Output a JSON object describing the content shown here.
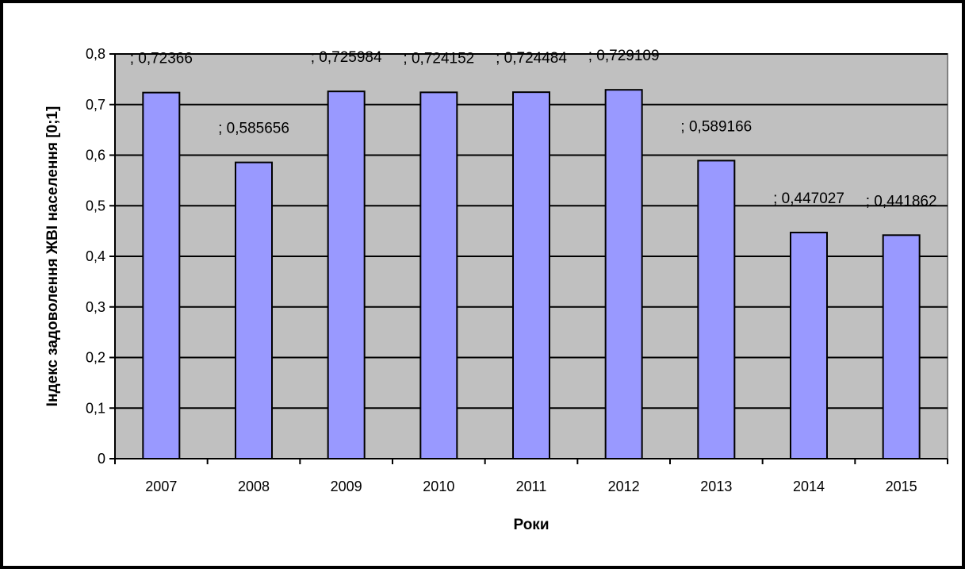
{
  "chart_data": {
    "type": "bar",
    "title": "",
    "xlabel": "Роки",
    "ylabel": "Індекс задоволення ЖВІ населення [0;1]",
    "categories": [
      "2007",
      "2008",
      "2009",
      "2010",
      "2011",
      "2012",
      "2013",
      "2014",
      "2015"
    ],
    "values": [
      0.72366,
      0.585656,
      0.725984,
      0.724152,
      0.724484,
      0.729109,
      0.589166,
      0.447027,
      0.441862
    ],
    "data_labels": [
      "; 0,72366",
      "; 0,585656",
      "; 0,725984",
      "; 0,724152",
      "; 0,724484",
      "; 0,729109",
      "; 0,589166",
      "; 0,447027",
      "; 0,441862"
    ],
    "ylim": [
      0,
      0.8
    ],
    "y_ticks": [
      "0",
      "0,1",
      "0,2",
      "0,3",
      "0,4",
      "0,5",
      "0,6",
      "0,7",
      "0,8"
    ],
    "grid": true,
    "legend": "none",
    "colors": {
      "bar_fill": "#9999ff",
      "plot_background": "#c0c0c0",
      "gridline": "#000000",
      "frame": "#000000"
    }
  }
}
